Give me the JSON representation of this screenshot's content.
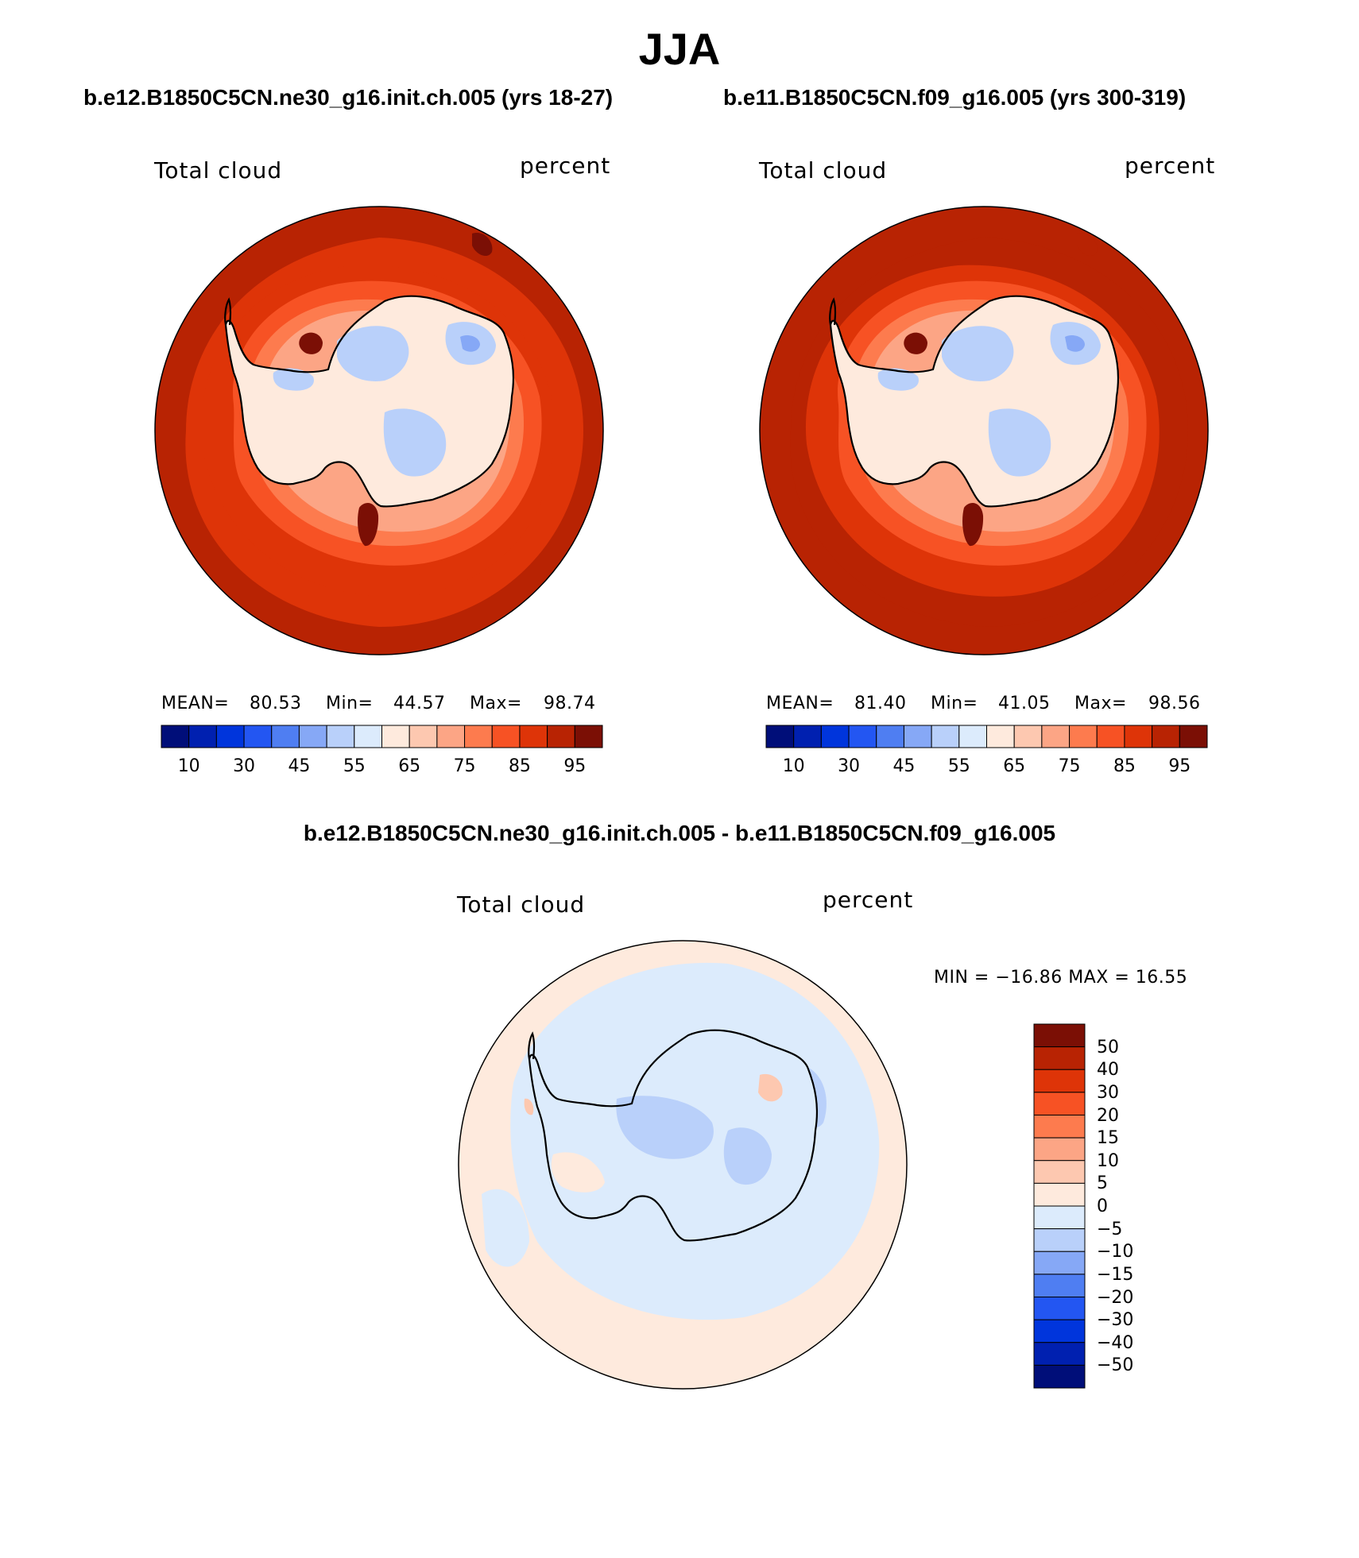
{
  "title": "JJA",
  "panels": [
    {
      "case_title": "b.e12.B1850C5CN.ne30_g16.init.ch.005 (yrs 18-27)",
      "left_label": "Total cloud",
      "right_label": "percent",
      "stats": {
        "mean_label": "MEAN=",
        "mean": "80.53",
        "min_label": "Min=",
        "min": "44.57",
        "max_label": "Max=",
        "max": "98.74"
      }
    },
    {
      "case_title": "b.e11.B1850C5CN.f09_g16.005 (yrs 300-319)",
      "left_label": "Total cloud",
      "right_label": "percent",
      "stats": {
        "mean_label": "MEAN=",
        "mean": "81.40",
        "min_label": "Min=",
        "min": "41.05",
        "max_label": "Max=",
        "max": "98.56"
      }
    }
  ],
  "horizontal_colorbar": {
    "colors": [
      "#000e79",
      "#0020b0",
      "#0035dc",
      "#2356f2",
      "#4f7ef2",
      "#86a8f6",
      "#b9d0fa",
      "#dcebfc",
      "#feeadd",
      "#fdc8b0",
      "#fca585",
      "#fd7b4e",
      "#f75224",
      "#de3408",
      "#b82303",
      "#7b0f05"
    ],
    "ticks": [
      "10",
      "30",
      "45",
      "55",
      "65",
      "75",
      "85",
      "95"
    ]
  },
  "difference_panel": {
    "title": "b.e12.B1850C5CN.ne30_g16.init.ch.005 - b.e11.B1850C5CN.f09_g16.005",
    "left_label": "Total cloud",
    "right_label": "percent",
    "minmax": "MIN = −16.86 MAX =   16.55"
  },
  "vertical_colorbar": {
    "colors_top_to_bottom": [
      "#7b0f05",
      "#b82303",
      "#de3408",
      "#f75224",
      "#fd7b4e",
      "#fca585",
      "#fdc8b0",
      "#feeadd",
      "#dcebfc",
      "#b9d0fa",
      "#86a8f6",
      "#4f7ef2",
      "#2356f2",
      "#0035dc",
      "#0020b0",
      "#000e79"
    ],
    "ticks": [
      "50",
      "40",
      "30",
      "20",
      "15",
      "10",
      "5",
      "0",
      "−5",
      "−10",
      "−15",
      "−20",
      "−30",
      "−40",
      "−50"
    ]
  },
  "map_colors": {
    "ocean_dark": "#b82303",
    "ocean_mid": "#de3408",
    "ring_orange": "#f75224",
    "ring_light": "#fd7b4e",
    "coast_pale": "#fca585",
    "inland_white": "#feeadd",
    "inland_blue": "#b9d0fa",
    "inland_blue2": "#86a8f6",
    "maxima": "#7b0f05",
    "diff_base": "#feeadd",
    "diff_blue": "#dcebfc",
    "diff_blue2": "#b9d0fa",
    "diff_pos": "#fdc8b0"
  }
}
